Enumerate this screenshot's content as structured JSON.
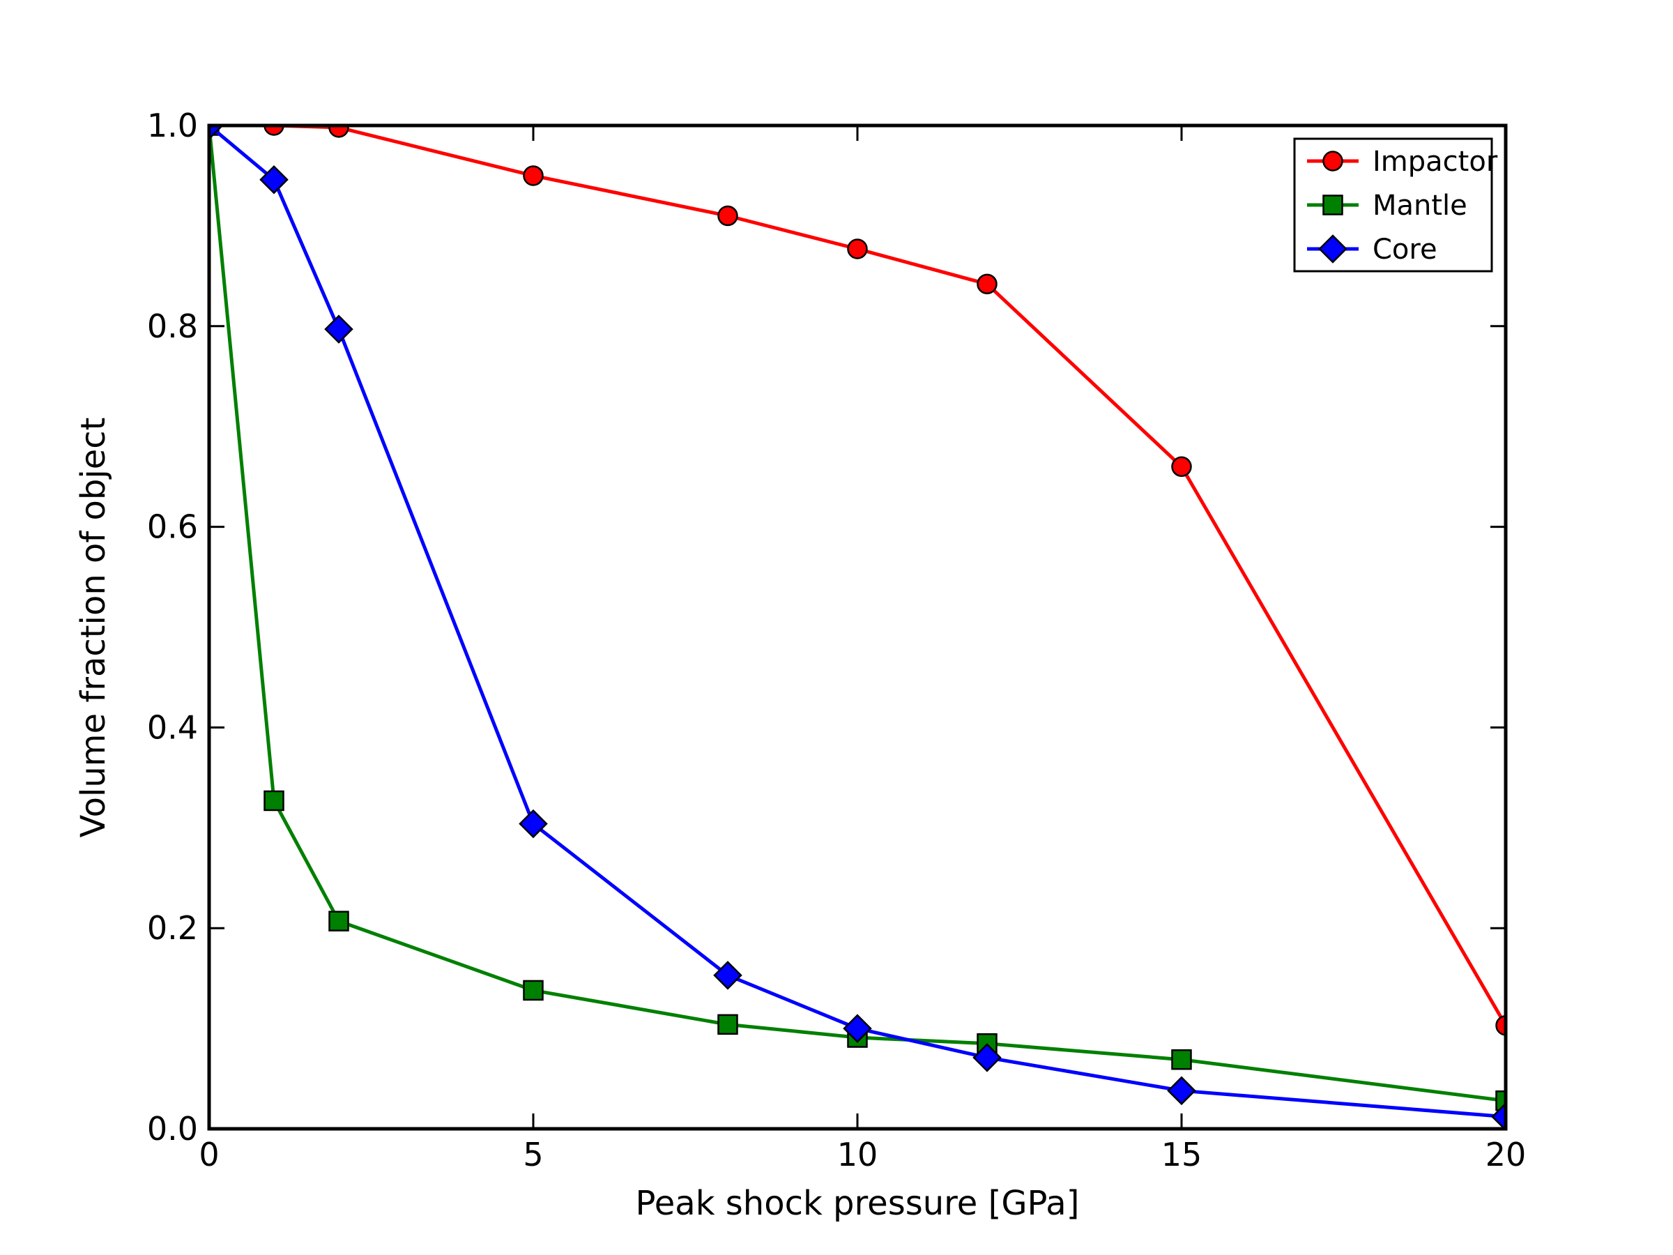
{
  "chart_data": {
    "type": "line",
    "title": "",
    "xlabel": "Peak shock pressure [GPa]",
    "ylabel": "Volume fraction of object",
    "xlim": [
      0,
      20
    ],
    "ylim": [
      0.0,
      1.0
    ],
    "xticks": {
      "values": [
        0,
        5,
        10,
        15,
        20
      ],
      "labels": [
        "0",
        "5",
        "10",
        "15",
        "20"
      ]
    },
    "yticks": {
      "values": [
        0.0,
        0.2,
        0.4,
        0.6,
        0.8,
        1.0
      ],
      "labels": [
        "0.0",
        "0.2",
        "0.4",
        "0.6",
        "0.8",
        "1.0"
      ]
    },
    "grid": false,
    "background": "#ffffff",
    "axis_color": "#000000",
    "marker_edge_color": "#000000",
    "legend": {
      "position": "upper-right",
      "border_color": "#000000",
      "fill": "#ffffff"
    },
    "x": [
      0,
      1,
      2,
      5,
      8,
      10,
      12,
      15,
      20
    ],
    "series": [
      {
        "name": "Impactor",
        "color": "#ff0000",
        "marker": "circle",
        "values": [
          1.0,
          1.0,
          0.998,
          0.95,
          0.91,
          0.877,
          0.842,
          0.66,
          0.103
        ]
      },
      {
        "name": "Mantle",
        "color": "#008000",
        "marker": "square",
        "values": [
          1.0,
          0.327,
          0.207,
          0.138,
          0.104,
          0.091,
          0.085,
          0.069,
          0.028
        ]
      },
      {
        "name": "Core",
        "color": "#0000ff",
        "marker": "diamond",
        "values": [
          1.0,
          0.946,
          0.797,
          0.304,
          0.153,
          0.1,
          0.071,
          0.038,
          0.012
        ]
      }
    ]
  }
}
